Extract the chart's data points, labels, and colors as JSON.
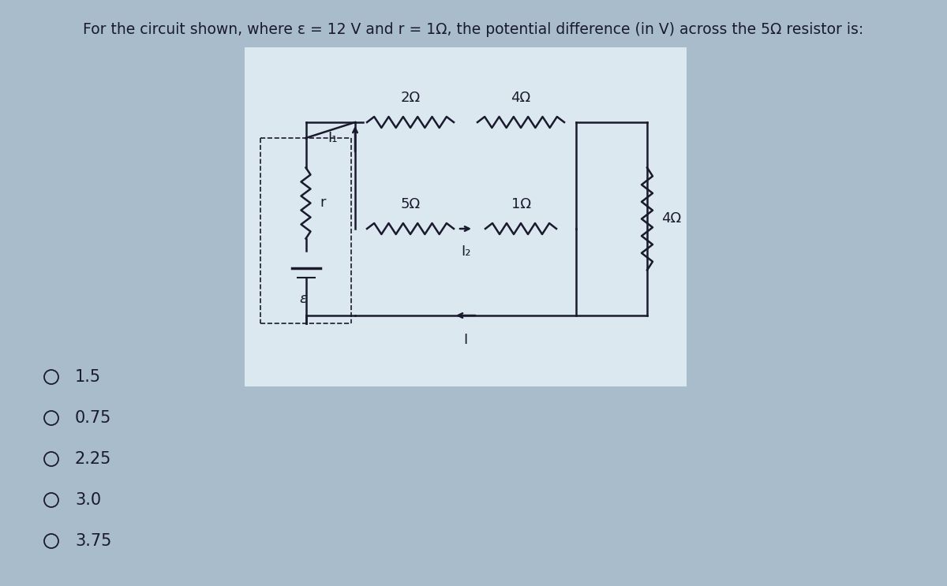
{
  "title": "For the circuit shown, where ε = 12 V and r = 1Ω, the potential difference (in V) across the 5Ω resistor is:",
  "bg_color": "#a8bccb",
  "circuit_bg": "#dce8f0",
  "choices": [
    "1.5",
    "0.75",
    "2.25",
    "3.0",
    "3.75"
  ],
  "fig_width": 12.0,
  "fig_height": 7.43,
  "line_color": "#1a1a2e",
  "text_color": "#1a1a2e"
}
